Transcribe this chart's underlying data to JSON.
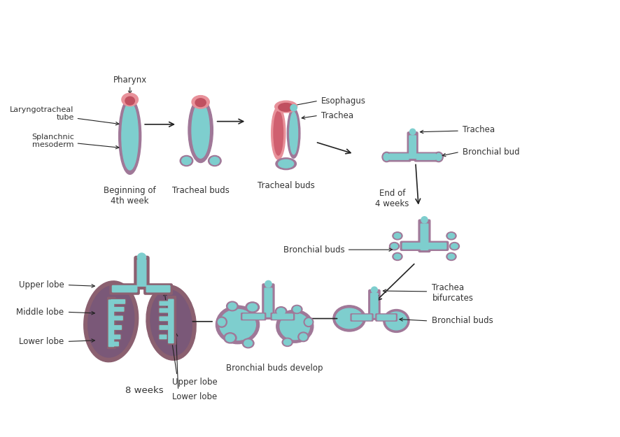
{
  "background_color": "#ffffff",
  "teal_color": "#7ecece",
  "pink_color": "#e8919a",
  "purple_color": "#a07898",
  "dark_purple": "#8b6070",
  "lung_fill": "#7a5878",
  "light_teal": "#a8dede",
  "text_color": "#333333",
  "arrow_color": "#222222",
  "labels": {
    "pharynx": "Pharynx",
    "laryngotracheal": "Laryngotracheal\ntube",
    "splanchnic": "Splanchnic\nmesoderm",
    "beginning": "Beginning of\n4th week",
    "tracheal_buds1": "Tracheal buds",
    "esophagus": "Esophagus",
    "trachea1": "Trachea",
    "tracheal_buds2": "Tracheal buds",
    "end4weeks": "End of\n4 weeks",
    "trachea2": "Trachea",
    "bronchial_bud": "Bronchial bud",
    "bronchial_buds1": "Bronchial buds",
    "trachea_bif": "Trachea\nbifurcates",
    "bronchial_buds2": "Bronchial buds",
    "bronchial_develop": "Bronchial buds develop",
    "upper_lobe1": "Upper lobe",
    "upper_lobe2": "Upper lobe",
    "middle_lobe": "Middle lobe",
    "lower_lobe1": "Lower lobe",
    "lower_lobe2": "Lower lobe",
    "weeks8": "8 weeks"
  },
  "figsize": [
    8.87,
    6.25
  ],
  "dpi": 100
}
